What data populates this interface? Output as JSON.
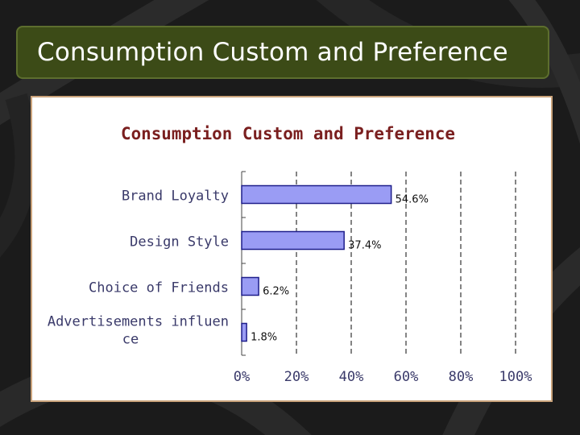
{
  "slide": {
    "title": "Consumption Custom and Preference"
  },
  "chart_data": {
    "type": "bar",
    "orientation": "horizontal",
    "title": "Consumption Custom and Preference",
    "categories": [
      "Brand Loyalty",
      "Design Style",
      "Choice of Friends",
      "Advertisements influen ce"
    ],
    "category_lines": [
      [
        "Brand Loyalty"
      ],
      [
        "Design Style"
      ],
      [
        "Choice of Friends"
      ],
      [
        "Advertisements influen",
        "ce"
      ]
    ],
    "values": [
      54.6,
      37.4,
      6.2,
      1.8
    ],
    "data_labels": [
      "54.6%",
      "37.4%",
      "6.2%",
      "1.8%"
    ],
    "xlim": [
      0,
      100
    ],
    "xticks": [
      0,
      20,
      40,
      60,
      80,
      100
    ],
    "xtick_labels": [
      "0%",
      "20%",
      "40%",
      "60%",
      "80%",
      "100%"
    ],
    "grid": "vertical-dashed",
    "colors": {
      "bar_fill": "#9a9cf4",
      "bar_stroke": "#1e1e8a"
    }
  }
}
